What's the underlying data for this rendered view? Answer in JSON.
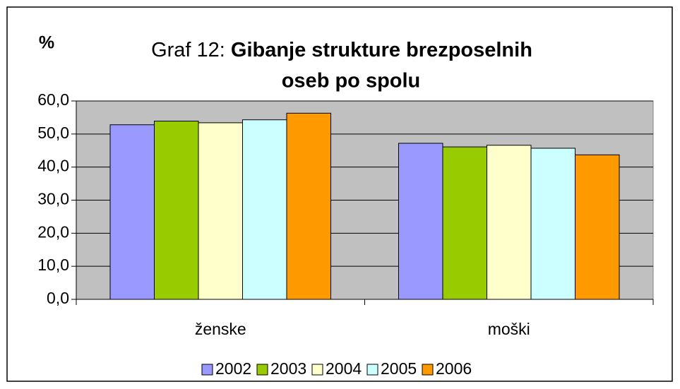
{
  "chart_data": {
    "type": "bar",
    "title": [
      "Graf 12: ",
      "Gibanje strukture brezposelnih",
      "oseb po spolu"
    ],
    "y_label": "%",
    "categories": [
      "ženske",
      "moški"
    ],
    "series": [
      {
        "name": "2002",
        "color": "#9999ff",
        "values": [
          52.8,
          47.2
        ]
      },
      {
        "name": "2003",
        "color": "#99cc00",
        "values": [
          53.9,
          46.1
        ]
      },
      {
        "name": "2004",
        "color": "#ffffcc",
        "values": [
          53.4,
          46.6
        ]
      },
      {
        "name": "2005",
        "color": "#ccffff",
        "values": [
          54.3,
          45.7
        ]
      },
      {
        "name": "2006",
        "color": "#ff9900",
        "values": [
          56.3,
          43.7
        ]
      }
    ],
    "ylim": [
      0,
      60
    ],
    "yticks": [
      {
        "value": 0,
        "label": "0,0"
      },
      {
        "value": 10,
        "label": "10,0"
      },
      {
        "value": 20,
        "label": "20,0"
      },
      {
        "value": 30,
        "label": "30,0"
      },
      {
        "value": 40,
        "label": "40,0"
      },
      {
        "value": 50,
        "label": "50,0"
      },
      {
        "value": 60,
        "label": "60,0"
      }
    ],
    "grid": true,
    "legend": "bottom"
  }
}
